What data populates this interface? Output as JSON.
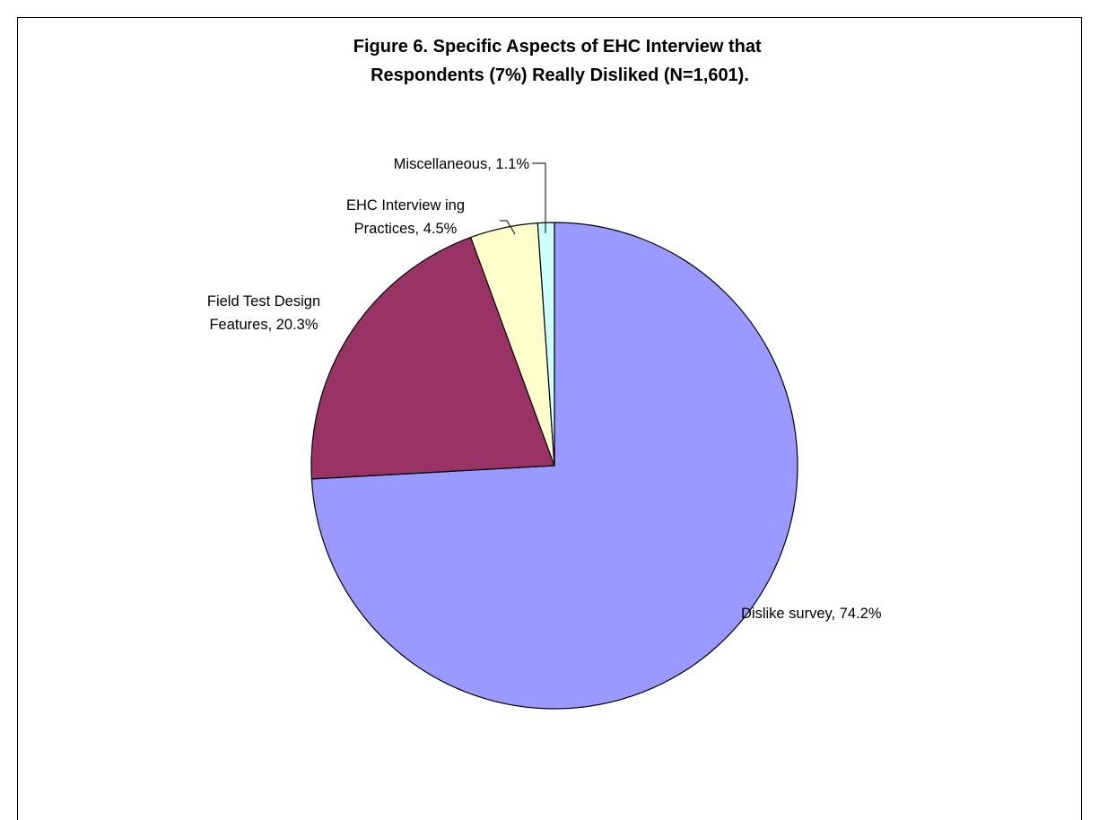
{
  "chart_data": {
    "type": "pie",
    "title": [
      "Figure 6. Specific Aspects of EHC Interview that",
      "Respondents (7%) Really Disliked (N=1,601)."
    ],
    "slices": [
      {
        "name": "Dislike survey",
        "value": 74.2,
        "label_lines": [
          "Dislike survey, 74.2%"
        ],
        "color": "#9999FF"
      },
      {
        "name": "Field Test Design Features",
        "value": 20.3,
        "label_lines": [
          "Field Test Design",
          "Features, 20.3%"
        ],
        "color": "#993366"
      },
      {
        "name": "EHC Interviewing Practices",
        "value": 4.5,
        "label_lines": [
          "EHC Interview ing",
          "Practices, 4.5%"
        ],
        "color": "#FFFFCC"
      },
      {
        "name": "Miscellaneous",
        "value": 1.1,
        "label_lines": [
          "Miscellaneous, 1.1%"
        ],
        "color": "#CCFFFF"
      }
    ],
    "legend": "none"
  }
}
